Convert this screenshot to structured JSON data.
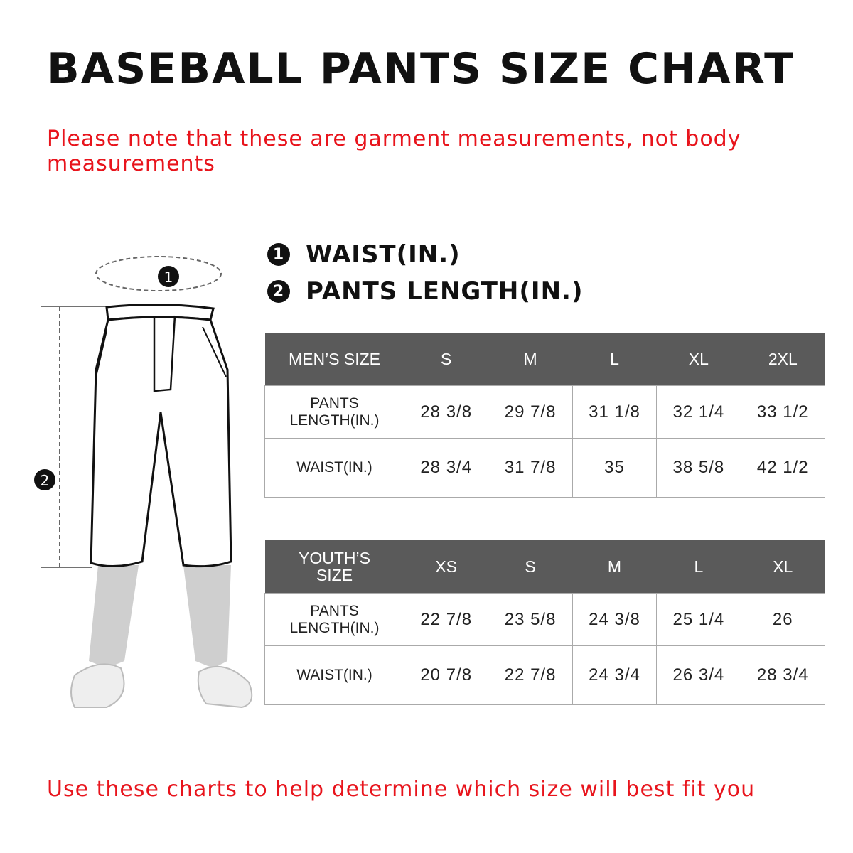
{
  "title": "BASEBALL PANTS SIZE CHART",
  "note": "Please note that these are garment measurements, not body measurements",
  "legend": [
    {
      "num": "1",
      "label": "WAIST(IN.)"
    },
    {
      "num": "2",
      "label": "PANTS LENGTH(IN.)"
    }
  ],
  "figure": {
    "marker_waist": "1",
    "marker_length": "2"
  },
  "mens": {
    "header": [
      "MEN’S SIZE",
      "S",
      "M",
      "L",
      "XL",
      "2XL"
    ],
    "rows": [
      [
        "PANTS LENGTH(IN.)",
        "28 3/8",
        "29 7/8",
        "31 1/8",
        "32 1/4",
        "33 1/2"
      ],
      [
        "WAIST(IN.)",
        "28 3/4",
        "31 7/8",
        "35",
        "38 5/8",
        "42 1/2"
      ]
    ]
  },
  "youth": {
    "header": [
      "YOUTH’S SIZE",
      "XS",
      "S",
      "M",
      "L",
      "XL"
    ],
    "rows": [
      [
        "PANTS LENGTH(IN.)",
        "22 7/8",
        "23 5/8",
        "24 3/8",
        "25 1/4",
        "26"
      ],
      [
        "WAIST(IN.)",
        "20 7/8",
        "22 7/8",
        "24 3/4",
        "26 3/4",
        "28 3/4"
      ]
    ]
  },
  "footer": "Use these charts to help determine which size will best fit you",
  "colors": {
    "accent": "#e8141c",
    "header_bg": "#5a5a5a"
  }
}
